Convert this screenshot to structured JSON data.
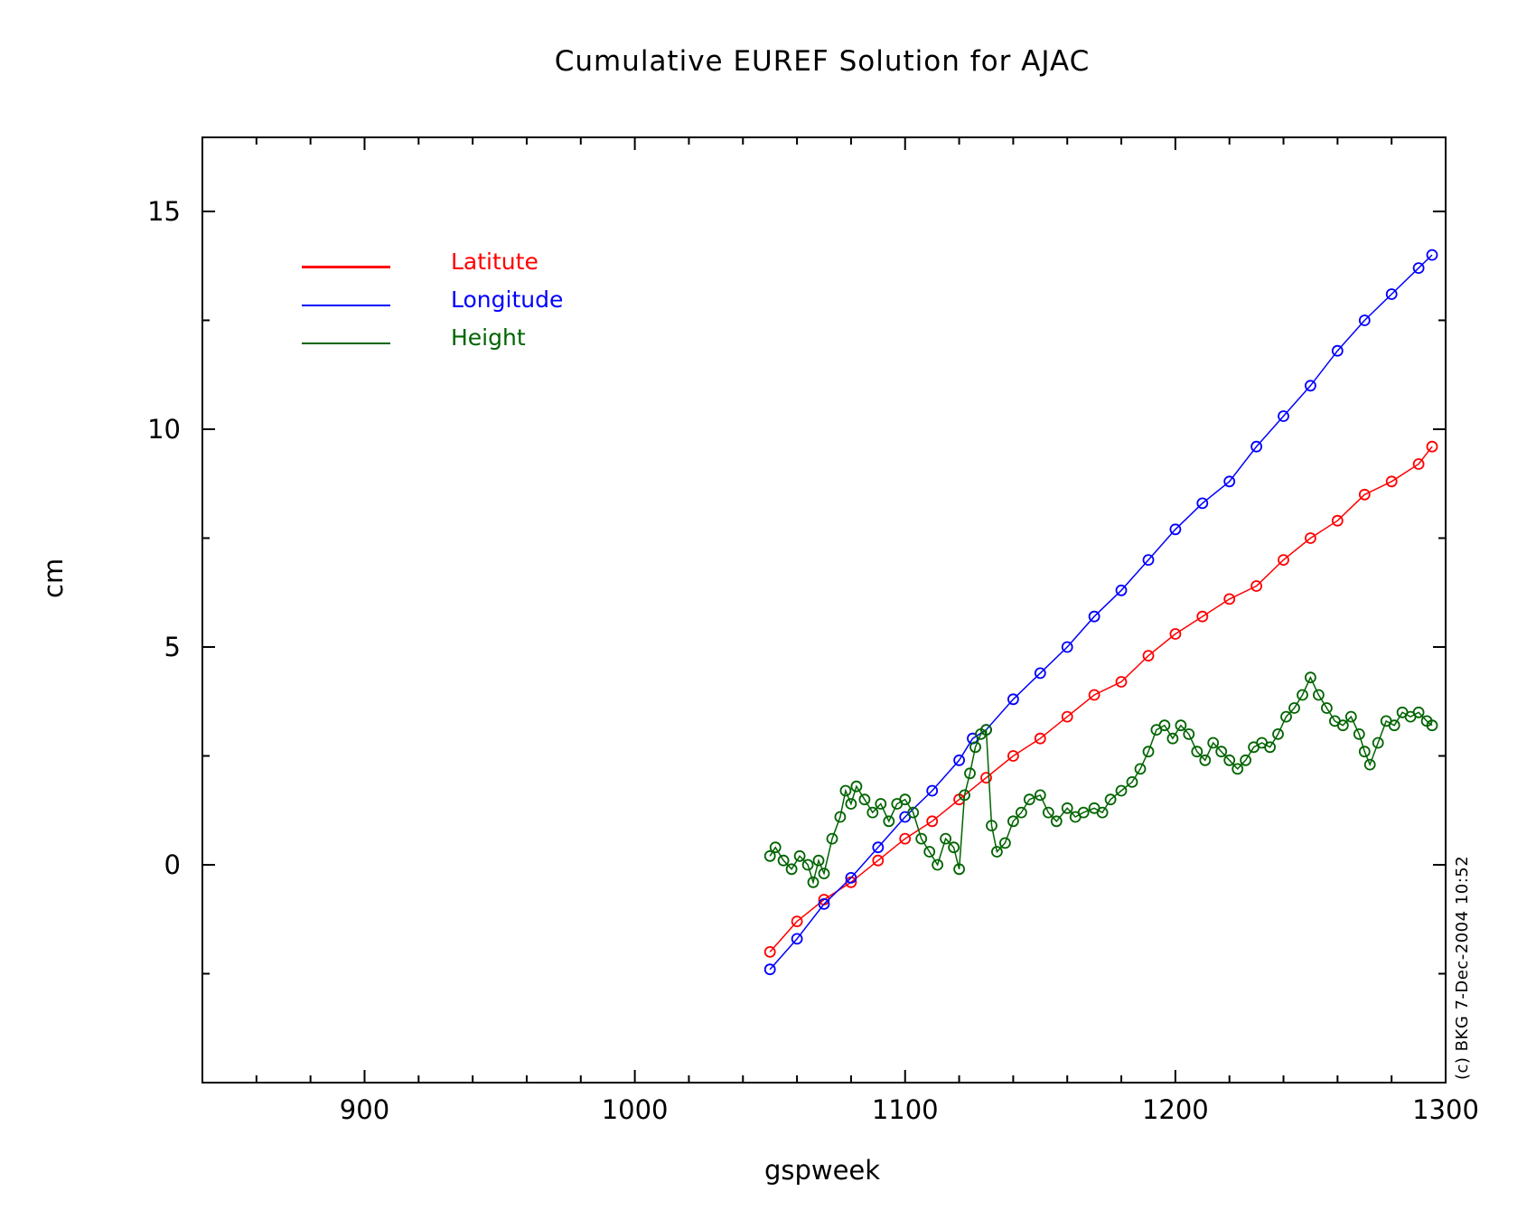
{
  "chart_data": {
    "type": "line",
    "title": "Cumulative EUREF Solution for AJAC",
    "xlabel": "gspweek",
    "ylabel": "cm",
    "xlim": [
      840,
      1300
    ],
    "ylim": [
      -5,
      16.7
    ],
    "xticks": [
      900,
      1000,
      1100,
      1200,
      1300
    ],
    "yticks": [
      0,
      5,
      10,
      15
    ],
    "xtick_labels": [
      "900",
      "1000",
      "1100",
      "1200",
      "1300"
    ],
    "ytick_labels": [
      "0",
      "5",
      "10",
      "15"
    ],
    "legend": "top-left",
    "grid": false,
    "marker": "open circle",
    "series": [
      {
        "name": "Latitute",
        "color": "#ff0000",
        "points": [
          [
            1050,
            -2.0
          ],
          [
            1060,
            -1.3
          ],
          [
            1070,
            -0.8
          ],
          [
            1080,
            -0.4
          ],
          [
            1090,
            0.1
          ],
          [
            1100,
            0.6
          ],
          [
            1110,
            1.0
          ],
          [
            1120,
            1.5
          ],
          [
            1130,
            2.0
          ],
          [
            1140,
            2.5
          ],
          [
            1150,
            2.9
          ],
          [
            1160,
            3.4
          ],
          [
            1170,
            3.9
          ],
          [
            1180,
            4.2
          ],
          [
            1190,
            4.8
          ],
          [
            1200,
            5.3
          ],
          [
            1210,
            5.7
          ],
          [
            1220,
            6.1
          ],
          [
            1230,
            6.4
          ],
          [
            1240,
            7.0
          ],
          [
            1250,
            7.5
          ],
          [
            1260,
            7.9
          ],
          [
            1270,
            8.5
          ],
          [
            1280,
            8.8
          ],
          [
            1290,
            9.2
          ],
          [
            1295,
            9.6
          ]
        ]
      },
      {
        "name": "Longitude",
        "color": "#0000ff",
        "points": [
          [
            1050,
            -2.4
          ],
          [
            1060,
            -1.7
          ],
          [
            1070,
            -0.9
          ],
          [
            1080,
            -0.3
          ],
          [
            1090,
            0.4
          ],
          [
            1100,
            1.1
          ],
          [
            1110,
            1.7
          ],
          [
            1120,
            2.4
          ],
          [
            1125,
            2.9
          ],
          [
            1130,
            3.1
          ],
          [
            1140,
            3.8
          ],
          [
            1150,
            4.4
          ],
          [
            1160,
            5.0
          ],
          [
            1170,
            5.7
          ],
          [
            1180,
            6.3
          ],
          [
            1190,
            7.0
          ],
          [
            1200,
            7.7
          ],
          [
            1210,
            8.3
          ],
          [
            1220,
            8.8
          ],
          [
            1230,
            9.6
          ],
          [
            1240,
            10.3
          ],
          [
            1250,
            11.0
          ],
          [
            1260,
            11.8
          ],
          [
            1270,
            12.5
          ],
          [
            1280,
            13.1
          ],
          [
            1290,
            13.7
          ],
          [
            1295,
            14.0
          ]
        ]
      },
      {
        "name": "Height",
        "color": "#006400",
        "points": [
          [
            1050,
            0.2
          ],
          [
            1052,
            0.4
          ],
          [
            1055,
            0.1
          ],
          [
            1058,
            -0.1
          ],
          [
            1061,
            0.2
          ],
          [
            1064,
            0.0
          ],
          [
            1066,
            -0.4
          ],
          [
            1068,
            0.1
          ],
          [
            1070,
            -0.2
          ],
          [
            1073,
            0.6
          ],
          [
            1076,
            1.1
          ],
          [
            1078,
            1.7
          ],
          [
            1080,
            1.4
          ],
          [
            1082,
            1.8
          ],
          [
            1085,
            1.5
          ],
          [
            1088,
            1.2
          ],
          [
            1091,
            1.4
          ],
          [
            1094,
            1.0
          ],
          [
            1097,
            1.4
          ],
          [
            1100,
            1.5
          ],
          [
            1103,
            1.2
          ],
          [
            1106,
            0.6
          ],
          [
            1109,
            0.3
          ],
          [
            1112,
            0.0
          ],
          [
            1115,
            0.6
          ],
          [
            1118,
            0.4
          ],
          [
            1120,
            -0.1
          ],
          [
            1122,
            1.6
          ],
          [
            1124,
            2.1
          ],
          [
            1126,
            2.7
          ],
          [
            1128,
            3.0
          ],
          [
            1130,
            3.1
          ],
          [
            1132,
            0.9
          ],
          [
            1134,
            0.3
          ],
          [
            1137,
            0.5
          ],
          [
            1140,
            1.0
          ],
          [
            1143,
            1.2
          ],
          [
            1146,
            1.5
          ],
          [
            1150,
            1.6
          ],
          [
            1153,
            1.2
          ],
          [
            1156,
            1.0
          ],
          [
            1160,
            1.3
          ],
          [
            1163,
            1.1
          ],
          [
            1166,
            1.2
          ],
          [
            1170,
            1.3
          ],
          [
            1173,
            1.2
          ],
          [
            1176,
            1.5
          ],
          [
            1180,
            1.7
          ],
          [
            1184,
            1.9
          ],
          [
            1187,
            2.2
          ],
          [
            1190,
            2.6
          ],
          [
            1193,
            3.1
          ],
          [
            1196,
            3.2
          ],
          [
            1199,
            2.9
          ],
          [
            1202,
            3.2
          ],
          [
            1205,
            3.0
          ],
          [
            1208,
            2.6
          ],
          [
            1211,
            2.4
          ],
          [
            1214,
            2.8
          ],
          [
            1217,
            2.6
          ],
          [
            1220,
            2.4
          ],
          [
            1223,
            2.2
          ],
          [
            1226,
            2.4
          ],
          [
            1229,
            2.7
          ],
          [
            1232,
            2.8
          ],
          [
            1235,
            2.7
          ],
          [
            1238,
            3.0
          ],
          [
            1241,
            3.4
          ],
          [
            1244,
            3.6
          ],
          [
            1247,
            3.9
          ],
          [
            1250,
            4.3
          ],
          [
            1253,
            3.9
          ],
          [
            1256,
            3.6
          ],
          [
            1259,
            3.3
          ],
          [
            1262,
            3.2
          ],
          [
            1265,
            3.4
          ],
          [
            1268,
            3.0
          ],
          [
            1270,
            2.6
          ],
          [
            1272,
            2.3
          ],
          [
            1275,
            2.8
          ],
          [
            1278,
            3.3
          ],
          [
            1281,
            3.2
          ],
          [
            1284,
            3.5
          ],
          [
            1287,
            3.4
          ],
          [
            1290,
            3.5
          ],
          [
            1293,
            3.3
          ],
          [
            1295,
            3.2
          ]
        ]
      }
    ],
    "credit": "(c) BKG 7-Dec-2004 10:52"
  }
}
